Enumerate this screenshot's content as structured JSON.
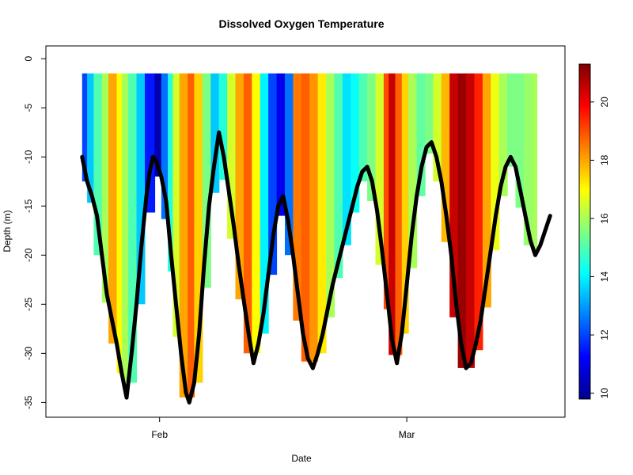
{
  "chart_data": {
    "type": "scatter",
    "title": "Dissolved Oxygen Temperature",
    "xlabel": "Date",
    "ylabel": "Depth (m)",
    "x_ticks": [
      "Feb",
      "Mar"
    ],
    "y_ticks": [
      0,
      -5,
      -10,
      -15,
      -20,
      -25,
      -30,
      -35
    ],
    "ylim": [
      -36.5,
      1.3
    ],
    "colorbar": {
      "min": 9.8,
      "max": 21.3,
      "ticks": [
        10,
        12,
        14,
        16,
        18,
        20
      ],
      "palette": [
        "#00008F",
        "#0000FF",
        "#0080FF",
        "#00FFFF",
        "#80FF80",
        "#FFFF00",
        "#FF8000",
        "#FF0000",
        "#800000"
      ]
    },
    "bottom_trace_color": "#000000",
    "bottom_depth_profile": [
      [
        0.0,
        -10.0
      ],
      [
        0.3,
        -12.5
      ],
      [
        0.6,
        -14.0
      ],
      [
        0.9,
        -16.0
      ],
      [
        1.2,
        -20.0
      ],
      [
        1.5,
        -24.0
      ],
      [
        1.8,
        -26.5
      ],
      [
        2.1,
        -29.0
      ],
      [
        2.4,
        -32.0
      ],
      [
        2.7,
        -34.5
      ],
      [
        3.0,
        -30.0
      ],
      [
        3.3,
        -25.0
      ],
      [
        3.6,
        -19.0
      ],
      [
        3.9,
        -14.0
      ],
      [
        4.1,
        -11.5
      ],
      [
        4.3,
        -10.0
      ],
      [
        4.5,
        -10.5
      ],
      [
        4.8,
        -12.0
      ],
      [
        5.1,
        -14.5
      ],
      [
        5.4,
        -20.0
      ],
      [
        5.7,
        -25.0
      ],
      [
        6.0,
        -30.0
      ],
      [
        6.3,
        -34.0
      ],
      [
        6.5,
        -35.0
      ],
      [
        6.8,
        -33.0
      ],
      [
        7.1,
        -28.0
      ],
      [
        7.4,
        -21.0
      ],
      [
        7.7,
        -15.0
      ],
      [
        8.0,
        -11.0
      ],
      [
        8.3,
        -7.5
      ],
      [
        8.6,
        -10.0
      ],
      [
        8.9,
        -13.5
      ],
      [
        9.2,
        -17.0
      ],
      [
        9.5,
        -21.0
      ],
      [
        9.8,
        -24.5
      ],
      [
        10.1,
        -28.0
      ],
      [
        10.4,
        -31.0
      ],
      [
        10.7,
        -29.0
      ],
      [
        11.0,
        -26.0
      ],
      [
        11.3,
        -22.0
      ],
      [
        11.6,
        -18.0
      ],
      [
        11.9,
        -15.0
      ],
      [
        12.2,
        -14.0
      ],
      [
        12.5,
        -16.5
      ],
      [
        12.8,
        -20.0
      ],
      [
        13.1,
        -24.0
      ],
      [
        13.4,
        -28.0
      ],
      [
        13.7,
        -30.5
      ],
      [
        14.0,
        -31.5
      ],
      [
        14.3,
        -30.0
      ],
      [
        14.6,
        -28.0
      ],
      [
        14.9,
        -25.5
      ],
      [
        15.2,
        -23.0
      ],
      [
        15.5,
        -21.0
      ],
      [
        15.8,
        -19.0
      ],
      [
        16.1,
        -17.0
      ],
      [
        16.4,
        -15.0
      ],
      [
        16.7,
        -13.0
      ],
      [
        17.0,
        -11.5
      ],
      [
        17.3,
        -11.0
      ],
      [
        17.6,
        -12.5
      ],
      [
        17.9,
        -15.5
      ],
      [
        18.2,
        -19.5
      ],
      [
        18.5,
        -24.0
      ],
      [
        18.8,
        -28.5
      ],
      [
        19.1,
        -31.0
      ],
      [
        19.4,
        -28.0
      ],
      [
        19.7,
        -23.0
      ],
      [
        20.0,
        -18.0
      ],
      [
        20.3,
        -14.0
      ],
      [
        20.6,
        -11.0
      ],
      [
        20.9,
        -9.0
      ],
      [
        21.2,
        -8.5
      ],
      [
        21.5,
        -10.0
      ],
      [
        21.8,
        -12.5
      ],
      [
        22.1,
        -16.0
      ],
      [
        22.4,
        -20.0
      ],
      [
        22.7,
        -25.0
      ],
      [
        23.0,
        -29.0
      ],
      [
        23.3,
        -31.5
      ],
      [
        23.6,
        -31.0
      ],
      [
        23.9,
        -29.0
      ],
      [
        24.2,
        -26.5
      ],
      [
        24.5,
        -23.0
      ],
      [
        24.8,
        -19.5
      ],
      [
        25.1,
        -16.0
      ],
      [
        25.4,
        -13.0
      ],
      [
        25.7,
        -11.0
      ],
      [
        26.0,
        -10.0
      ],
      [
        26.3,
        -11.0
      ],
      [
        26.6,
        -13.5
      ],
      [
        26.9,
        -16.0
      ],
      [
        27.2,
        -18.5
      ],
      [
        27.5,
        -20.0
      ],
      [
        27.8,
        -19.0
      ],
      [
        28.1,
        -17.5
      ],
      [
        28.4,
        -16.0
      ]
    ],
    "temperature_bands": [
      [
        0.0,
        12.0
      ],
      [
        0.3,
        13.5
      ],
      [
        0.7,
        15.0
      ],
      [
        1.2,
        16.0
      ],
      [
        1.6,
        18.0
      ],
      [
        2.1,
        17.0
      ],
      [
        2.4,
        16.0
      ],
      [
        2.8,
        15.0
      ],
      [
        3.3,
        13.5
      ],
      [
        3.8,
        11.5
      ],
      [
        4.4,
        10.2
      ],
      [
        4.8,
        12.5
      ],
      [
        5.2,
        14.5
      ],
      [
        5.5,
        16.5
      ],
      [
        5.9,
        18.0
      ],
      [
        6.4,
        18.8
      ],
      [
        6.8,
        17.5
      ],
      [
        7.3,
        15.5
      ],
      [
        7.8,
        13.5
      ],
      [
        8.3,
        14.5
      ],
      [
        8.8,
        16.5
      ],
      [
        9.3,
        18.0
      ],
      [
        9.8,
        18.8
      ],
      [
        10.3,
        17.0
      ],
      [
        10.8,
        14.0
      ],
      [
        11.3,
        12.0
      ],
      [
        11.8,
        11.0
      ],
      [
        12.3,
        12.5
      ],
      [
        12.8,
        18.5
      ],
      [
        13.3,
        18.8
      ],
      [
        13.8,
        18.2
      ],
      [
        14.3,
        17.2
      ],
      [
        14.8,
        16.0
      ],
      [
        15.3,
        15.0
      ],
      [
        15.8,
        13.8
      ],
      [
        16.3,
        14.2
      ],
      [
        16.8,
        15.0
      ],
      [
        17.3,
        15.5
      ],
      [
        17.8,
        16.5
      ],
      [
        18.3,
        19.0
      ],
      [
        18.6,
        20.5
      ],
      [
        19.0,
        18.8
      ],
      [
        19.4,
        17.5
      ],
      [
        19.8,
        16.0
      ],
      [
        20.3,
        15.2
      ],
      [
        20.8,
        15.5
      ],
      [
        21.3,
        16.5
      ],
      [
        21.8,
        17.8
      ],
      [
        22.3,
        20.5
      ],
      [
        22.8,
        21.0
      ],
      [
        23.3,
        20.5
      ],
      [
        23.8,
        19.5
      ],
      [
        24.3,
        18.0
      ],
      [
        24.8,
        16.8
      ],
      [
        25.3,
        16.0
      ],
      [
        25.8,
        15.5
      ],
      [
        26.3,
        15.5
      ],
      [
        26.8,
        15.8
      ],
      [
        27.3,
        16.0
      ]
    ],
    "sampling_top_depth": -1.5,
    "legend": "colorbar, right"
  }
}
